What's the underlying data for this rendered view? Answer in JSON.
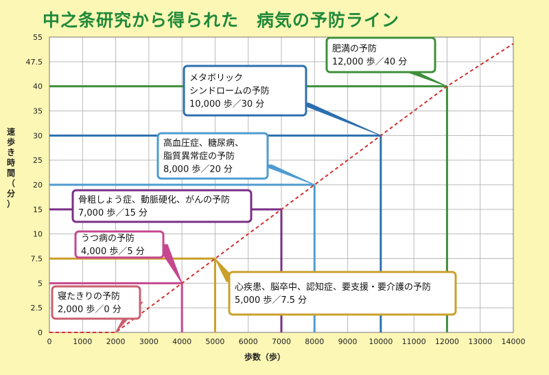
{
  "title": "中之条研究から得られた　病気の予防ライン",
  "chart_data": {
    "type": "line",
    "xlabel": "歩数（歩）",
    "ylabel": "速歩き時間（分）",
    "xlim": [
      0,
      14000
    ],
    "ylim": [
      0,
      55
    ],
    "x_ticks": [
      "0",
      "1000",
      "2000",
      "3000",
      "4000",
      "5000",
      "6000",
      "7000",
      "8000",
      "9000",
      "10000",
      "11000",
      "12000",
      "13000",
      "14000"
    ],
    "y_ticks": [
      "0",
      "2.5",
      "5",
      "7.5",
      "10",
      "15",
      "20",
      "25",
      "30",
      "35",
      "40",
      "47.5",
      "55"
    ],
    "grid": true,
    "trend_line": {
      "style": "dashed",
      "color": "#d0312d",
      "points": [
        [
          0,
          0
        ],
        [
          2000,
          0
        ],
        [
          4000,
          5
        ],
        [
          5000,
          7.5
        ],
        [
          7000,
          15
        ],
        [
          8000,
          20
        ],
        [
          10000,
          30
        ],
        [
          12000,
          40
        ],
        [
          14000,
          53
        ]
      ]
    },
    "prevention_lines": [
      {
        "steps": 2000,
        "minutes": 0,
        "color": "#c9606e",
        "lines": [
          "寝たきりの予防",
          "2,000 歩／0 分"
        ]
      },
      {
        "steps": 4000,
        "minutes": 5,
        "color": "#c5478f",
        "lines": [
          "うつ病の予防",
          "4,000 歩／5 分"
        ]
      },
      {
        "steps": 5000,
        "minutes": 7.5,
        "color": "#c9a02c",
        "lines": [
          "心疾患、脳卒中、認知症、要支援・要介護の予防",
          "5,000 歩／7.5 分"
        ]
      },
      {
        "steps": 7000,
        "minutes": 15,
        "color": "#7a2f87",
        "lines": [
          "骨粗しょう症、動脈硬化、がんの予防",
          "7,000 歩／15 分"
        ]
      },
      {
        "steps": 8000,
        "minutes": 20,
        "color": "#4e9bd1",
        "lines": [
          "高血圧症、糖尿病、",
          "脂質異常症の予防",
          "8,000 歩／20 分"
        ]
      },
      {
        "steps": 10000,
        "minutes": 30,
        "color": "#2c6fae",
        "lines": [
          "メタボリック",
          "シンドロームの予防",
          "10,000 歩／30 分"
        ]
      },
      {
        "steps": 12000,
        "minutes": 40,
        "color": "#3f8f3a",
        "lines": [
          "肥満の予防",
          "12,000 歩／40 分"
        ]
      }
    ],
    "colors": {
      "background": "#fdf7b5",
      "grid": "#b9b9b9",
      "title": "#1f8a3a",
      "trend": "#d0312d"
    }
  }
}
